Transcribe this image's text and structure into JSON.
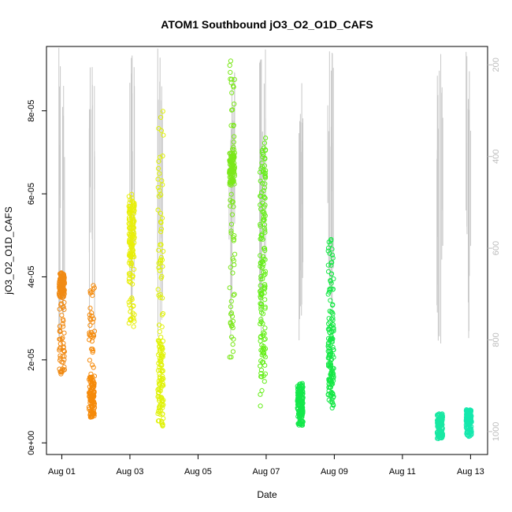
{
  "chart_data": {
    "type": "scatter",
    "title": "ATOM1 Southbound jO3_O2_O1D_CAFS",
    "xlabel": "Date",
    "ylabel": "jO3_O2_O1D_CAFS",
    "x_ticks": [
      "Aug 01",
      "Aug 03",
      "Aug 05",
      "Aug 07",
      "Aug 09",
      "Aug 11",
      "Aug 13"
    ],
    "x_tick_days": [
      1,
      3,
      5,
      7,
      9,
      11,
      13
    ],
    "xlim_days": [
      0.55,
      13.5
    ],
    "y_ticks": [
      "0e+00",
      "2e-05",
      "4e-05",
      "6e-05",
      "8e-05"
    ],
    "y_tick_values": [
      0,
      2e-05,
      4e-05,
      6e-05,
      8e-05
    ],
    "ylim": [
      -2.8e-06,
      9.55e-05
    ],
    "right_axis": {
      "label": "",
      "ticks": [
        "200",
        "400",
        "600",
        "800",
        "1000"
      ],
      "tick_values": [
        200,
        400,
        600,
        800,
        1000
      ],
      "lim_reversed": [
        1050,
        160
      ],
      "color": "#bdbdbd"
    },
    "grid": false,
    "legend": "none",
    "pressure_trace_color": "#c8c8c8",
    "flights": [
      {
        "day": 1.0,
        "ymin": 1.6e-05,
        "ymax": 4.1e-05,
        "color": "#f08a14",
        "cluster": [
          3.5e-05,
          4.1e-05
        ]
      },
      {
        "day": 1.88,
        "ymin": 6.5e-06,
        "ymax": 3.8e-05,
        "color": "#f58a0a",
        "cluster": [
          6e-06,
          1.6e-05
        ]
      },
      {
        "day": 3.05,
        "ymin": 2.8e-05,
        "ymax": 6e-05,
        "color": "#e8ef0a",
        "cluster": [
          4.4e-05,
          5.8e-05
        ]
      },
      {
        "day": 3.9,
        "ymin": 3.5e-06,
        "ymax": 8.1e-05,
        "color": "#e0f20a",
        "cluster": [
          4e-06,
          2.5e-05
        ]
      },
      {
        "day": 6.0,
        "ymin": 2e-05,
        "ymax": 9.2e-05,
        "color": "#7be81a",
        "cluster": [
          6.2e-05,
          7e-05
        ]
      },
      {
        "day": 6.9,
        "ymin": 7.5e-06,
        "ymax": 7.4e-05,
        "color": "#66ee1a",
        "cluster": [
          1.5e-05,
          7.4e-05
        ]
      },
      {
        "day": 8.0,
        "ymin": 4e-06,
        "ymax": 1.45e-05,
        "color": "#14e84b",
        "cluster": [
          6e-06,
          1.4e-05
        ]
      },
      {
        "day": 8.9,
        "ymin": 7.5e-06,
        "ymax": 4.9e-05,
        "color": "#16e846",
        "cluster": [
          9e-06,
          3e-05
        ]
      },
      {
        "day": 12.1,
        "ymin": 1e-06,
        "ymax": 7e-06,
        "color": "#19e8a3",
        "cluster": [
          1e-06,
          6e-06
        ]
      },
      {
        "day": 12.95,
        "ymin": 1.5e-06,
        "ymax": 8.2e-06,
        "color": "#14e8ad",
        "cluster": [
          5e-06,
          8e-06
        ]
      }
    ]
  }
}
